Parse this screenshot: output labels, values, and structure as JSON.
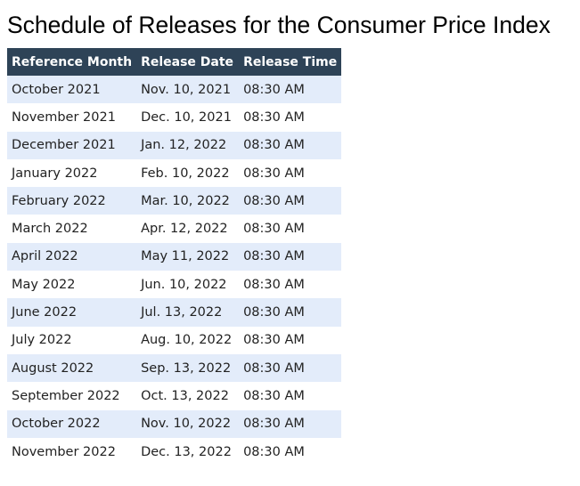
{
  "page": {
    "title": "Schedule of Releases for the Consumer Price Index"
  },
  "colors": {
    "header_bg": "#2e4357",
    "row_stripe": "#e3ecfa",
    "row_plain": "#ffffff"
  },
  "table": {
    "headers": [
      "Reference Month",
      "Release Date",
      "Release Time"
    ],
    "rows": [
      [
        "October 2021",
        "Nov. 10, 2021",
        "08:30 AM"
      ],
      [
        "November 2021",
        "Dec. 10, 2021",
        "08:30 AM"
      ],
      [
        "December 2021",
        "Jan. 12, 2022",
        "08:30 AM"
      ],
      [
        "January 2022",
        "Feb. 10, 2022",
        "08:30 AM"
      ],
      [
        "February 2022",
        "Mar. 10, 2022",
        "08:30 AM"
      ],
      [
        "March 2022",
        "Apr. 12, 2022",
        "08:30 AM"
      ],
      [
        "April 2022",
        "May 11, 2022",
        "08:30 AM"
      ],
      [
        "May 2022",
        "Jun. 10, 2022",
        "08:30 AM"
      ],
      [
        "June 2022",
        "Jul. 13, 2022",
        "08:30 AM"
      ],
      [
        "July 2022",
        "Aug. 10, 2022",
        "08:30 AM"
      ],
      [
        "August 2022",
        "Sep. 13, 2022",
        "08:30 AM"
      ],
      [
        "September 2022",
        "Oct. 13, 2022",
        "08:30 AM"
      ],
      [
        "October 2022",
        "Nov. 10, 2022",
        "08:30 AM"
      ],
      [
        "November 2022",
        "Dec. 13, 2022",
        "08:30 AM"
      ]
    ]
  }
}
